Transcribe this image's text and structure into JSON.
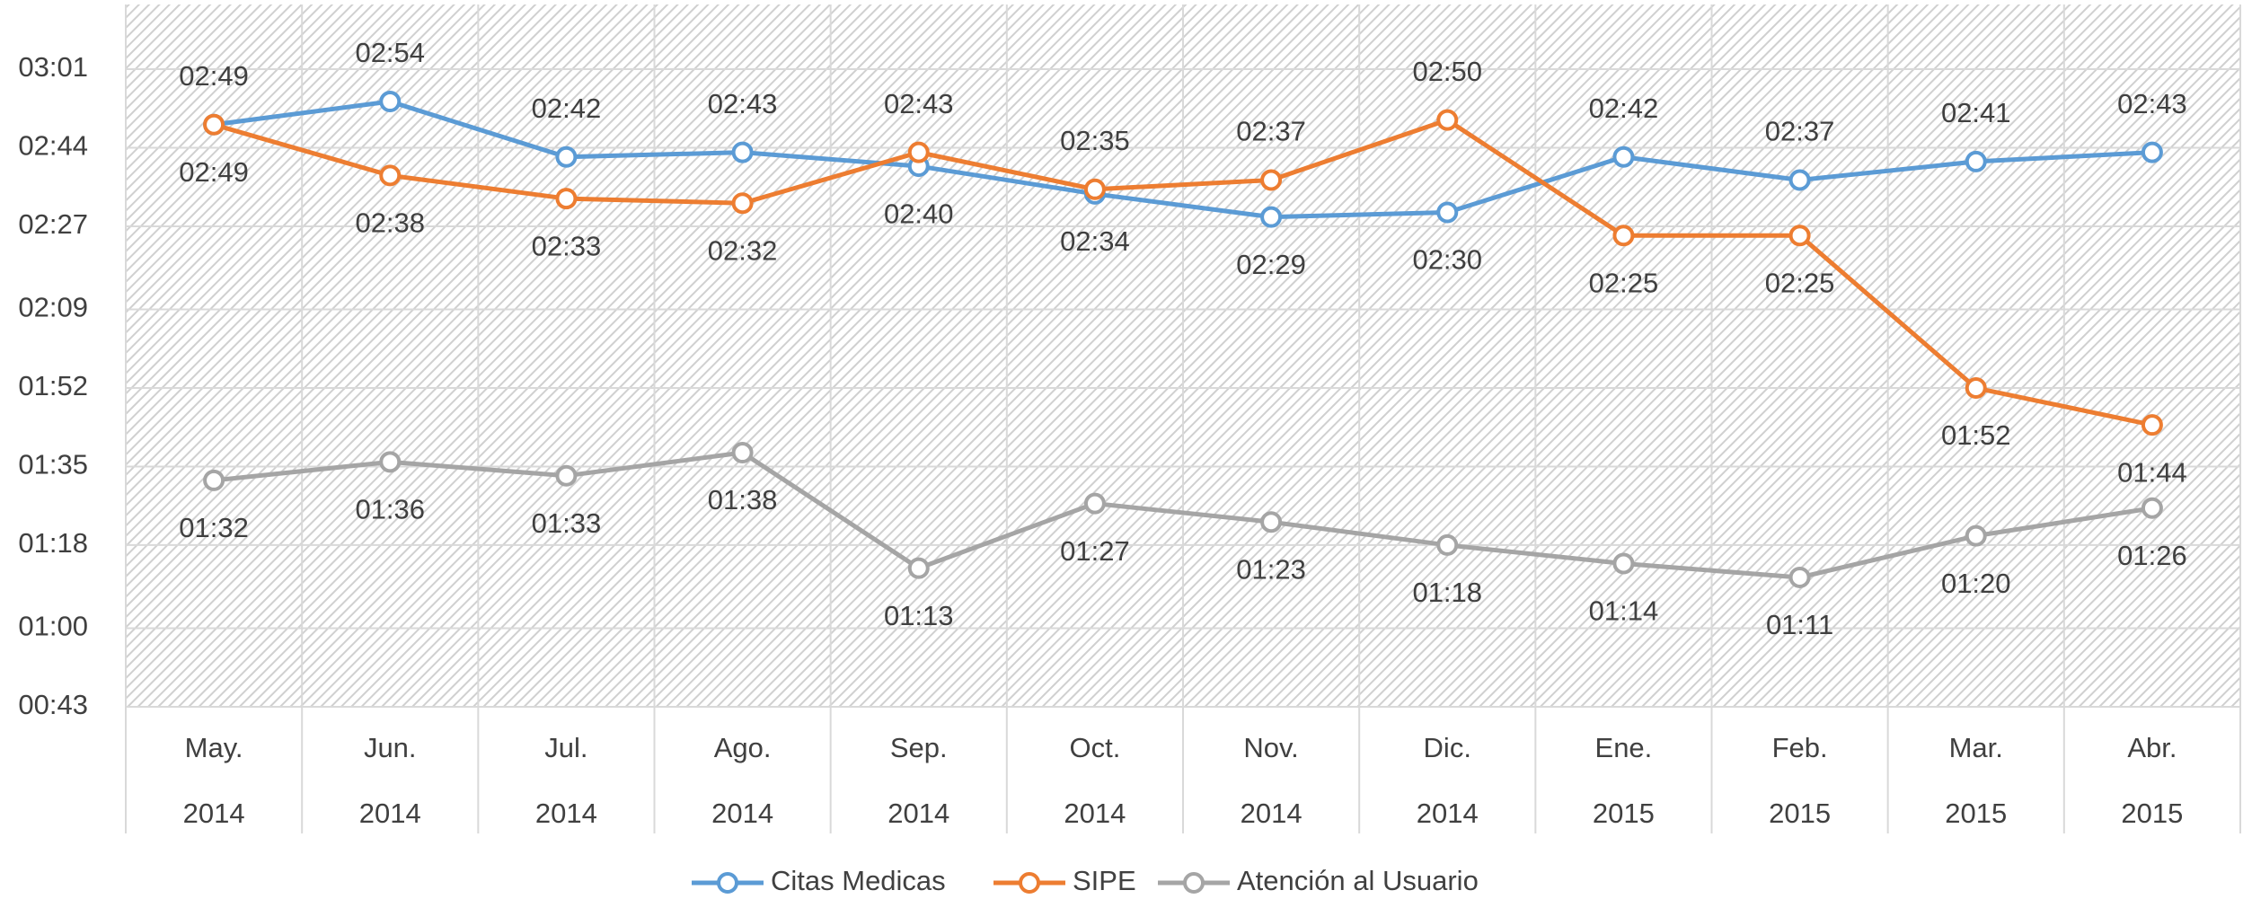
{
  "chart_data": {
    "type": "line",
    "categories": [
      [
        "May.",
        "2014"
      ],
      [
        "Jun.",
        "2014"
      ],
      [
        "Jul.",
        "2014"
      ],
      [
        "Ago.",
        "2014"
      ],
      [
        "Sep.",
        "2014"
      ],
      [
        "Oct.",
        "2014"
      ],
      [
        "Nov.",
        "2014"
      ],
      [
        "Dic.",
        "2014"
      ],
      [
        "Ene.",
        "2015"
      ],
      [
        "Feb.",
        "2015"
      ],
      [
        "Mar.",
        "2015"
      ],
      [
        "Abr.",
        "2015"
      ]
    ],
    "series": [
      {
        "name": "Citas Medicas",
        "color": "#5b9bd5",
        "values": [
          169,
          174,
          162,
          163,
          160,
          154,
          149,
          150,
          162,
          157,
          161,
          163
        ],
        "value_labels": [
          "02:49",
          "02:54",
          "02:42",
          "02:43",
          "02:40",
          "02:34",
          "02:29",
          "02:30",
          "02:42",
          "02:37",
          "02:41",
          "02:43"
        ]
      },
      {
        "name": "SIPE",
        "color": "#ed7d31",
        "values": [
          169,
          158,
          153,
          152,
          163,
          155,
          157,
          170,
          145,
          145,
          112,
          104
        ],
        "value_labels": [
          "02:49",
          "02:38",
          "02:33",
          "02:32",
          "02:43",
          "02:35",
          "02:37",
          "02:50",
          "02:25",
          "02:25",
          "01:52",
          "01:44"
        ]
      },
      {
        "name": "Atención al Usuario",
        "color": "#a5a5a5",
        "values": [
          92,
          96,
          93,
          98,
          73,
          87,
          83,
          78,
          74,
          71,
          80,
          86
        ],
        "value_labels": [
          "01:32",
          "01:36",
          "01:33",
          "01:38",
          "01:13",
          "01:27",
          "01:23",
          "01:18",
          "01:14",
          "01:11",
          "01:20",
          "01:26"
        ]
      }
    ],
    "ylim": [
      43,
      195
    ],
    "yticks": [
      {
        "value": 43,
        "label": "00:43"
      },
      {
        "value": 60,
        "label": "01:00"
      },
      {
        "value": 78,
        "label": "01:18"
      },
      {
        "value": 95,
        "label": "01:35"
      },
      {
        "value": 112,
        "label": "01:52"
      },
      {
        "value": 129,
        "label": "02:09"
      },
      {
        "value": 147,
        "label": "02:27"
      },
      {
        "value": 164,
        "label": "02:44"
      },
      {
        "value": 181,
        "label": "03:01"
      }
    ],
    "grid": true,
    "legend": "bottom"
  }
}
